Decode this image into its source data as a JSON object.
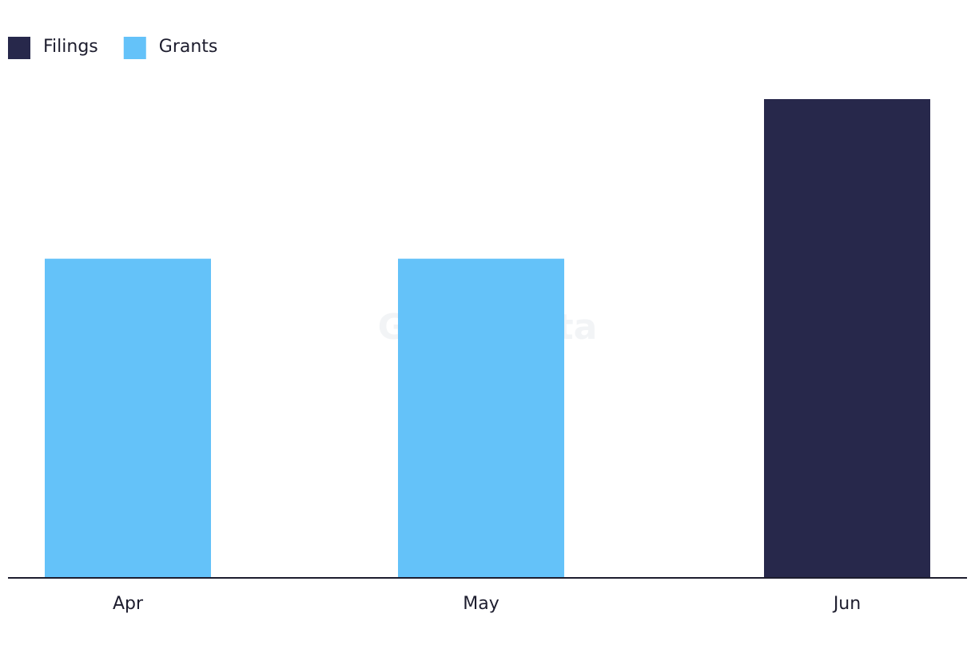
{
  "chart_data": {
    "type": "stacked_bar",
    "watermark": "GlobalData",
    "categories": [
      "Apr",
      "May",
      "Jun"
    ],
    "series": [
      {
        "name": "Filings",
        "color": "#27284b",
        "values": [
          0,
          0,
          3
        ]
      },
      {
        "name": "Grants",
        "color": "#64c2f9",
        "values": [
          2,
          2,
          0
        ]
      }
    ],
    "legend": "top-left"
  }
}
